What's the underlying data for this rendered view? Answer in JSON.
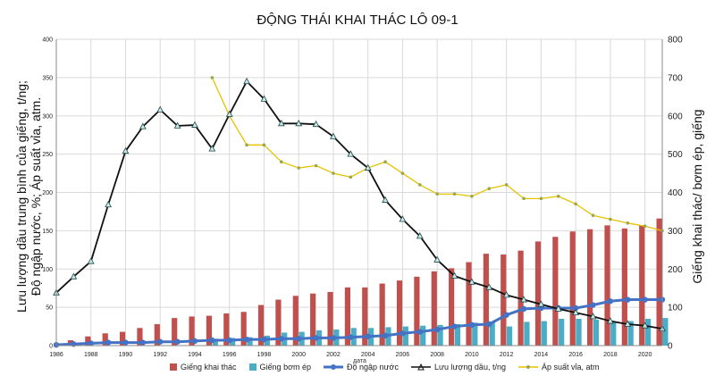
{
  "chart_data": {
    "type": "bar",
    "title": "ĐỘNG THÁI KHAI THÁC LÔ 09-1",
    "xlabel": "дата",
    "ylabel_left_line1": "Lưu lượng dầu trung bình của giếng, t/ng;",
    "ylabel_left_line2": "Độ ngập nước, %; Áp suất vỉa, atm.",
    "ylabel_right": "Giếng khai thác/ bơm ép, giếng",
    "ylim_left": [
      0,
      400
    ],
    "ylim_right": [
      0,
      800
    ],
    "xlim": [
      1986,
      2021
    ],
    "x_ticks": [
      1986,
      1988,
      1990,
      1992,
      1994,
      1996,
      1998,
      2000,
      2002,
      2004,
      2006,
      2008,
      2010,
      2012,
      2014,
      2016,
      2018,
      2020
    ],
    "y_left_ticks": [
      0,
      50,
      100,
      150,
      200,
      250,
      300,
      350,
      400
    ],
    "y_right_ticks": [
      0,
      100,
      200,
      300,
      400,
      500,
      600,
      700,
      800
    ],
    "grid": true,
    "legend_position": "bottom",
    "series": [
      {
        "name": "Giếng khai thác",
        "kind": "bar",
        "axis": "right",
        "color": "#c0504d",
        "x": [
          1987,
          1988,
          1989,
          1990,
          1991,
          1992,
          1993,
          1994,
          1995,
          1996,
          1997,
          1998,
          1999,
          2000,
          2001,
          2002,
          2003,
          2004,
          2005,
          2006,
          2007,
          2008,
          2009,
          2010,
          2011,
          2012,
          2013,
          2014,
          2015,
          2016,
          2017,
          2018,
          2019,
          2020,
          2021
        ],
        "values": [
          14,
          24,
          32,
          36,
          46,
          56,
          72,
          76,
          78,
          84,
          88,
          106,
          120,
          130,
          136,
          140,
          152,
          152,
          162,
          170,
          180,
          194,
          202,
          218,
          240,
          238,
          248,
          272,
          284,
          298,
          304,
          314,
          306,
          314,
          332
        ]
      },
      {
        "name": "Giếng bơm ép",
        "kind": "bar",
        "axis": "right",
        "color": "#4bacc6",
        "x": [
          1987,
          1988,
          1989,
          1990,
          1991,
          1992,
          1993,
          1994,
          1995,
          1996,
          1997,
          1998,
          1999,
          2000,
          2001,
          2002,
          2003,
          2004,
          2005,
          2006,
          2007,
          2008,
          2009,
          2010,
          2011,
          2012,
          2013,
          2014,
          2015,
          2016,
          2017,
          2018,
          2019,
          2020,
          2021
        ],
        "values": [
          0,
          0,
          0,
          0,
          0,
          0,
          0,
          0,
          18,
          20,
          22,
          26,
          34,
          36,
          40,
          42,
          46,
          46,
          48,
          50,
          52,
          54,
          56,
          60,
          60,
          50,
          62,
          64,
          70,
          70,
          68,
          60,
          64,
          70,
          72
        ]
      },
      {
        "name": "Độ ngập nước",
        "kind": "line",
        "axis": "left",
        "color": "#4472c4",
        "x": [
          1986,
          1987,
          1988,
          1989,
          1990,
          1991,
          1992,
          1993,
          1994,
          1995,
          1996,
          1997,
          1998,
          1999,
          2000,
          2001,
          2002,
          2003,
          2004,
          2005,
          2006,
          2007,
          2008,
          2009,
          2010,
          2011,
          2012,
          2013,
          2014,
          2015,
          2016,
          2017,
          2018,
          2019,
          2020,
          2021
        ],
        "values": [
          1,
          2,
          3,
          4,
          4,
          4,
          5,
          5,
          6,
          7,
          7,
          8,
          8,
          9,
          9,
          10,
          10,
          11,
          12,
          13,
          16,
          18,
          21,
          25,
          27,
          28,
          40,
          48,
          49,
          49,
          49,
          53,
          58,
          60,
          60,
          60
        ]
      },
      {
        "name": "Lưu lượng dầu, t/ng",
        "kind": "line",
        "axis": "left",
        "color": "#111111",
        "x": [
          1986,
          1987,
          1988,
          1989,
          1990,
          1991,
          1992,
          1993,
          1994,
          1995,
          1996,
          1997,
          1998,
          1999,
          2000,
          2001,
          2002,
          2003,
          2004,
          2005,
          2006,
          2007,
          2008,
          2009,
          2010,
          2011,
          2012,
          2013,
          2014,
          2015,
          2016,
          2017,
          2018,
          2019,
          2020,
          2021
        ],
        "values": [
          69,
          90,
          110,
          184,
          254,
          286,
          308,
          287,
          288,
          257,
          302,
          345,
          322,
          290,
          290,
          289,
          273,
          250,
          232,
          190,
          165,
          143,
          112,
          91,
          83,
          76,
          66,
          60,
          54,
          48,
          43,
          38,
          32,
          28,
          26,
          22
        ]
      },
      {
        "name": "Áp suất vỉa, atm",
        "kind": "line",
        "axis": "left",
        "color": "#e8c100",
        "x": [
          1995,
          1996,
          1997,
          1998,
          1999,
          2000,
          2001,
          2002,
          2003,
          2004,
          2005,
          2006,
          2007,
          2008,
          2009,
          2010,
          2011,
          2012,
          2013,
          2014,
          2015,
          2016,
          2017,
          2018,
          2019,
          2020,
          2021
        ],
        "values": [
          350,
          300,
          262,
          262,
          240,
          232,
          235,
          225,
          220,
          232,
          240,
          225,
          210,
          198,
          198,
          195,
          205,
          210,
          192,
          192,
          195,
          185,
          170,
          165,
          160,
          156,
          150
        ]
      }
    ]
  }
}
